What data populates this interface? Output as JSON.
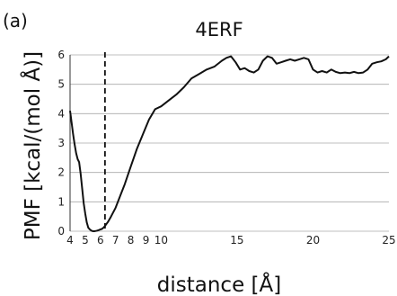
{
  "panel_label": "(a)",
  "chart_data": {
    "type": "line",
    "title": "4ERF",
    "xlabel": "distance [Å]",
    "ylabel": "PMF [kcal/(mol Å)]",
    "xlim": [
      4,
      25
    ],
    "ylim": [
      0,
      6
    ],
    "x_ticks": [
      4,
      5,
      6,
      7,
      8,
      9,
      10,
      15,
      20,
      25
    ],
    "y_ticks": [
      0,
      1,
      2,
      3,
      4,
      5,
      6
    ],
    "grid": "horizontal",
    "line_color": "#111111",
    "grid_color": "#aaaaaa",
    "reference_line": {
      "x": 6.3,
      "style": "dashed"
    },
    "series": [
      {
        "x": [
          4.0,
          4.1,
          4.2,
          4.3,
          4.4,
          4.5,
          4.6,
          4.7,
          4.8,
          4.9,
          5.0,
          5.1,
          5.2,
          5.3,
          5.4,
          5.5,
          5.6,
          5.7,
          5.8,
          5.9,
          6.0,
          6.1,
          6.2,
          6.3,
          6.4,
          6.5,
          6.7,
          7.0,
          7.3,
          7.6,
          8.0,
          8.4,
          8.8,
          9.2,
          9.6,
          10.0,
          10.5,
          11.0,
          11.5,
          12.0,
          12.5,
          13.0,
          13.5,
          14.0,
          14.3,
          14.6,
          14.9,
          15.2,
          15.5,
          15.8,
          16.1,
          16.4,
          16.7,
          17.0,
          17.3,
          17.6,
          17.9,
          18.2,
          18.5,
          18.8,
          19.1,
          19.4,
          19.7,
          20.0,
          20.3,
          20.6,
          20.9,
          21.2,
          21.5,
          21.8,
          22.1,
          22.4,
          22.7,
          23.0,
          23.3,
          23.6,
          23.9,
          24.2,
          24.5,
          24.8,
          25.0
        ],
        "y": [
          4.1,
          3.7,
          3.3,
          2.95,
          2.65,
          2.45,
          2.35,
          1.95,
          1.45,
          0.95,
          0.6,
          0.3,
          0.12,
          0.06,
          0.02,
          0.0,
          0.0,
          0.01,
          0.02,
          0.04,
          0.06,
          0.08,
          0.12,
          0.18,
          0.25,
          0.32,
          0.5,
          0.8,
          1.2,
          1.6,
          2.2,
          2.8,
          3.3,
          3.8,
          4.15,
          4.25,
          4.45,
          4.65,
          4.9,
          5.2,
          5.35,
          5.5,
          5.6,
          5.8,
          5.9,
          5.95,
          5.75,
          5.5,
          5.55,
          5.45,
          5.4,
          5.5,
          5.8,
          5.95,
          5.9,
          5.7,
          5.75,
          5.8,
          5.85,
          5.8,
          5.85,
          5.9,
          5.85,
          5.5,
          5.4,
          5.45,
          5.4,
          5.5,
          5.42,
          5.38,
          5.4,
          5.38,
          5.42,
          5.38,
          5.4,
          5.5,
          5.7,
          5.75,
          5.78,
          5.85,
          5.95
        ]
      }
    ]
  }
}
